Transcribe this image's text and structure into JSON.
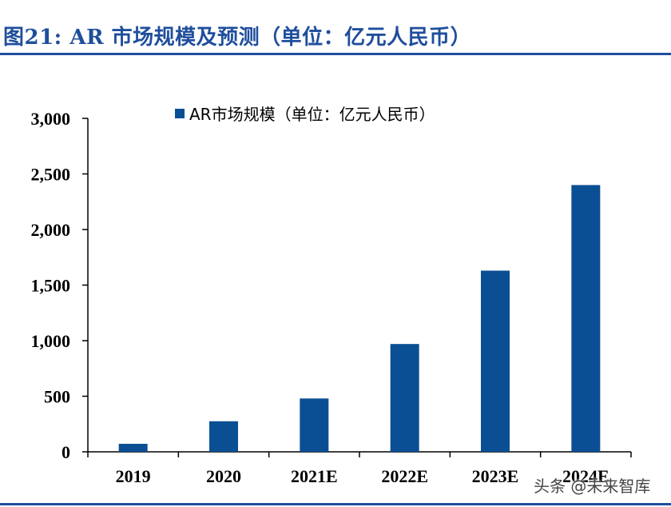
{
  "figure": {
    "title": "图21: AR 市场规模及预测（单位：亿元人民币）"
  },
  "colors": {
    "accent": "#1f4e9c",
    "bar": "#0a4f93",
    "axis": "#000000"
  },
  "chart_data": {
    "type": "bar",
    "categories": [
      "2019",
      "2020",
      "2021E",
      "2022E",
      "2023E",
      "2024E"
    ],
    "series": [
      {
        "name": "AR市场规模（单位：亿元人民币）",
        "values": [
          72,
          275,
          480,
          970,
          1630,
          2400
        ]
      }
    ],
    "ylim": [
      0,
      3000
    ],
    "yticks": [
      0,
      500,
      1000,
      1500,
      2000,
      2500,
      3000
    ],
    "ytick_labels": [
      "0",
      "500",
      "1,000",
      "1,500",
      "2,000",
      "2,500",
      "3,000"
    ],
    "grid": false,
    "legend_position": "top"
  },
  "watermark": {
    "text": "头条 @未来智库"
  }
}
